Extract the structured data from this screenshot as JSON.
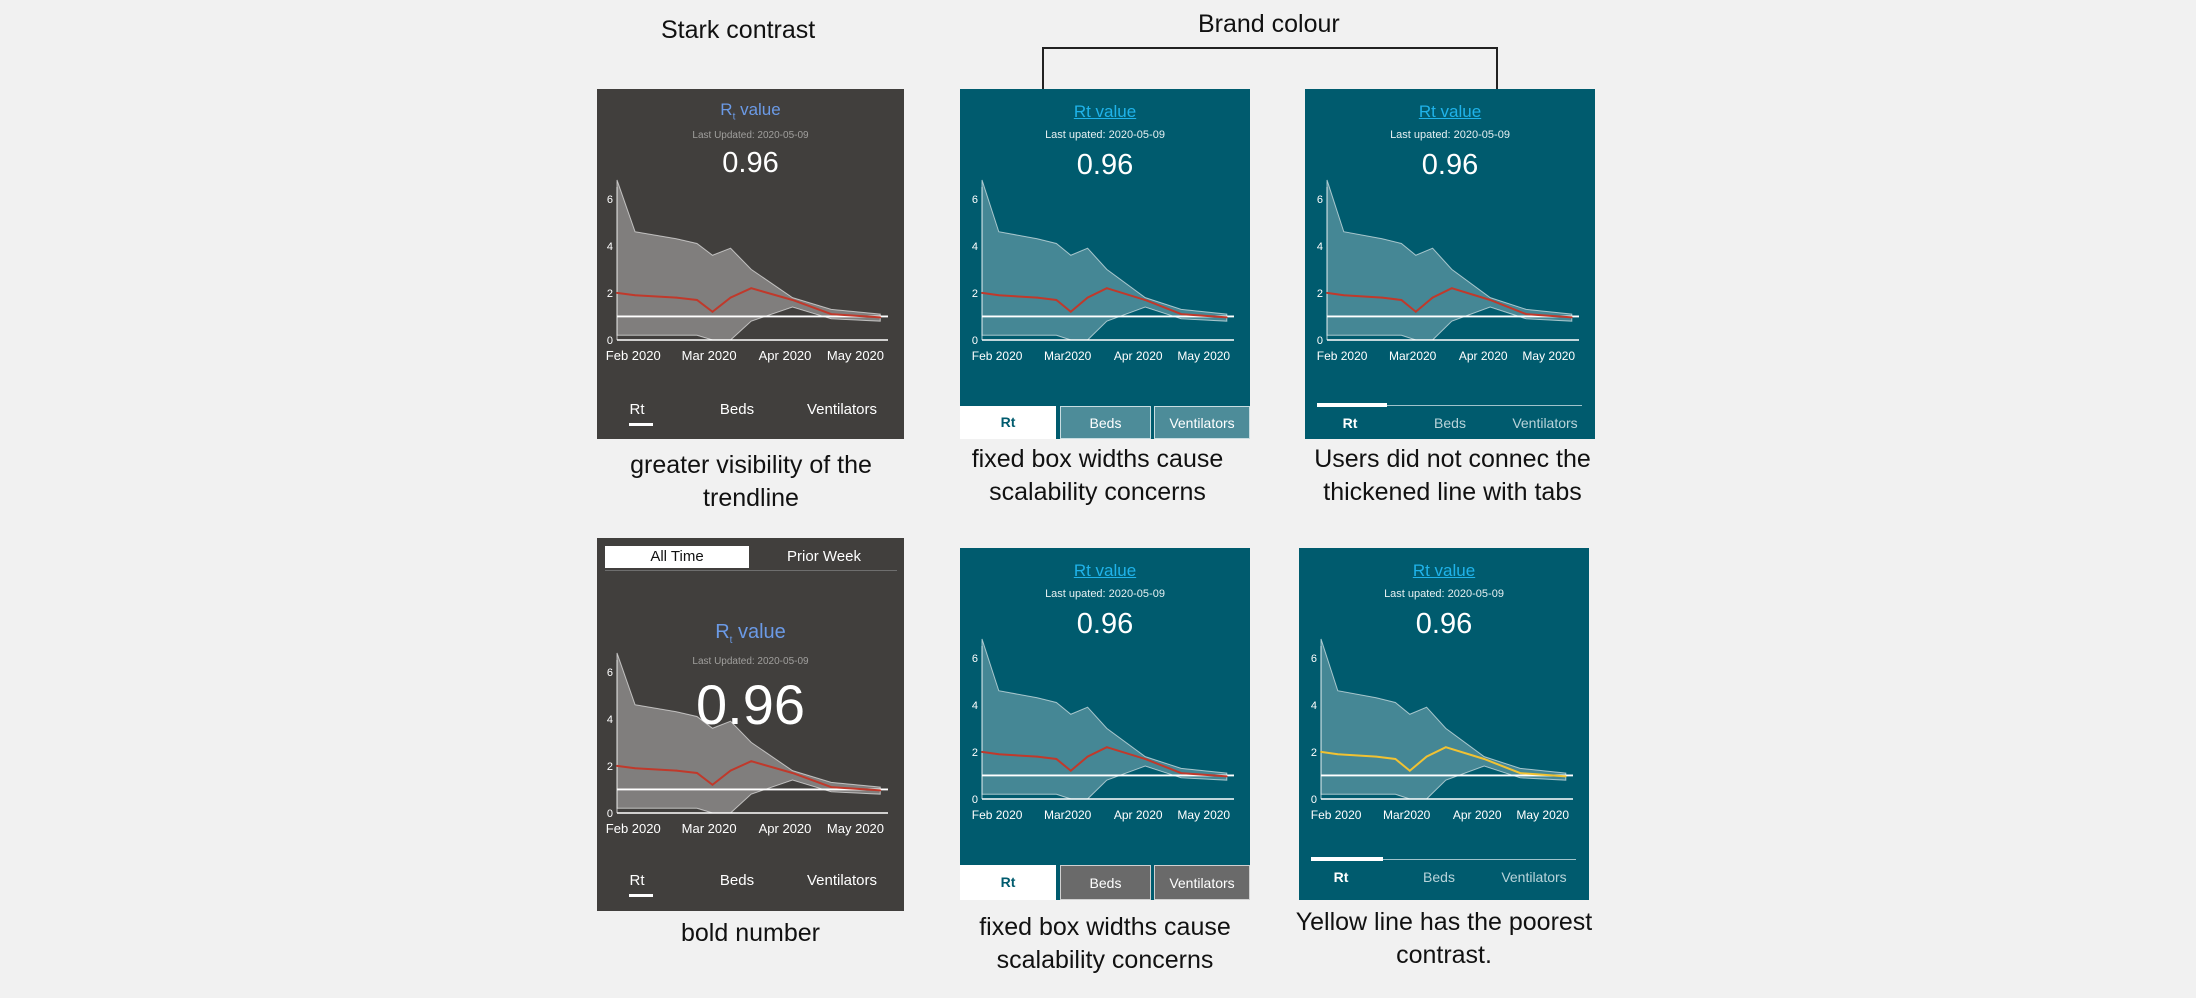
{
  "headings": {
    "stark": "Stark contrast",
    "brand": "Brand colour"
  },
  "rt": {
    "title": "R",
    "title_sub": "t",
    "title_suffix": " value",
    "teal_title": "Rt value",
    "dark_date": "Last Updated: 2020-05-09",
    "teal_date": "Last upated: 2020-05-09",
    "value": "0.96"
  },
  "axis": {
    "x_ticks": [
      "Feb 2020",
      "Mar 2020",
      "Apr 2020",
      "May 2020"
    ],
    "x_ticks_teal": [
      "Feb 2020",
      "Mar2020",
      "Apr 2020",
      "May 2020"
    ],
    "y_ticks": [
      "0",
      "2",
      "4",
      "6"
    ]
  },
  "tabs": [
    "Rt",
    "Beds",
    "Ventilators"
  ],
  "toggle": [
    "All Time",
    "Prior Week"
  ],
  "captions": {
    "c1": "greater visibility of  the trendline",
    "c2": "fixed box widths cause scalability concerns",
    "c3": "Users did not connec the thickened line with tabs",
    "c4": "bold number",
    "c5": "fixed box widths cause scalability concerns",
    "c6": "Yellow line has the poorest contrast."
  },
  "colors": {
    "dark_bg": "#413f3d",
    "teal_bg": "#005b6e",
    "trend_red": "#c0392b",
    "trend_yellow": "#f1c232",
    "band_dark": "#8c8a88",
    "band_teal": "#4d8c99"
  },
  "chart_data": {
    "type": "area",
    "title": "Rt value",
    "x": [
      "2020-01-28",
      "2020-02-04",
      "2020-02-20",
      "2020-02-28",
      "2020-03-05",
      "2020-03-12",
      "2020-03-20",
      "2020-04-05",
      "2020-04-20",
      "2020-05-09"
    ],
    "series": [
      {
        "values": [
          2.0,
          1.9,
          1.8,
          1.7,
          1.2,
          1.8,
          2.2,
          1.7,
          1.1,
          0.96
        ]
      }
    ],
    "band_upper": [
      6.8,
      4.6,
      4.3,
      4.1,
      3.6,
      3.9,
      3.0,
      1.8,
      1.3,
      1.1
    ],
    "band_lower": [
      0.2,
      0.2,
      0.2,
      0.2,
      0.0,
      0.0,
      0.8,
      1.4,
      0.9,
      0.8
    ],
    "reference_line": 1,
    "xlabel": "",
    "ylabel": "",
    "ylim": [
      0,
      6.5
    ]
  }
}
